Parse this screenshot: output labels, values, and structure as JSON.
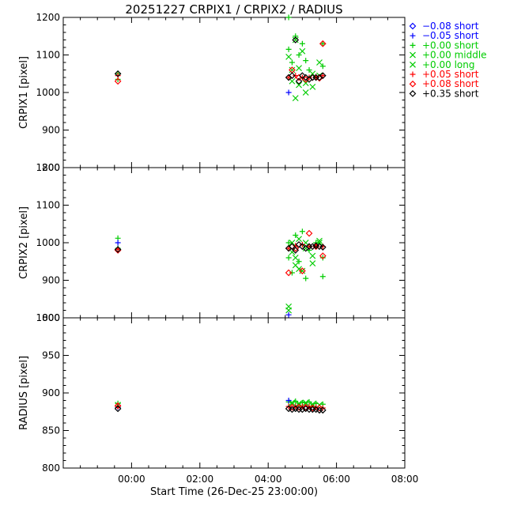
{
  "title": "20251227 CRPIX1 / CRPIX2 / RADIUS",
  "xlabel": "Start Time (26-Dec-25 23:00:00)",
  "x_ticks": [
    "00:00",
    "02:00",
    "04:00",
    "06:00",
    "08:00"
  ],
  "legend": [
    {
      "label": "−0.08 short",
      "symbol": "diamond",
      "color": "#0000ff"
    },
    {
      "label": "−0.05 short",
      "symbol": "plus",
      "color": "#0000ff"
    },
    {
      "label": "+0.00 short",
      "symbol": "plus",
      "color": "#00cc00"
    },
    {
      "label": "+0.00 middle",
      "symbol": "x",
      "color": "#00cc00"
    },
    {
      "label": "+0.00 long",
      "symbol": "x",
      "color": "#00cc00"
    },
    {
      "label": "+0.05 short",
      "symbol": "plus",
      "color": "#ff0000"
    },
    {
      "label": "+0.08 short",
      "symbol": "diamond",
      "color": "#ff0000"
    },
    {
      "label": "+0.35 short",
      "symbol": "diamond",
      "color": "#000000"
    }
  ],
  "chart_data": [
    {
      "type": "scatter",
      "ylabel": "CRPIX1 [pixel]",
      "xlim": [
        "-1.0",
        "9.0"
      ],
      "ylim": [
        800,
        1200
      ],
      "y_ticks": [
        "800",
        "900",
        "1000",
        "1100",
        "1200"
      ],
      "series": [
        {
          "name": "+0.00 short",
          "symbol": "plus",
          "color": "#00cc00",
          "points": [
            [
              0.6,
              1050
            ],
            [
              0.6,
              1035
            ],
            [
              5.6,
              1200
            ],
            [
              5.6,
              1115
            ],
            [
              5.7,
              1080
            ],
            [
              5.8,
              1150
            ],
            [
              5.9,
              1100
            ],
            [
              6.0,
              1130
            ],
            [
              6.1,
              1085
            ],
            [
              6.2,
              1060
            ],
            [
              6.4,
              1040
            ],
            [
              6.6,
              1130
            ],
            [
              6.6,
              1070
            ]
          ]
        },
        {
          "name": "+0.00 middle",
          "symbol": "x",
          "color": "#00cc00",
          "points": [
            [
              5.6,
              1095
            ],
            [
              5.7,
              1060
            ],
            [
              5.8,
              1140
            ],
            [
              5.9,
              1020
            ],
            [
              6.0,
              1110
            ],
            [
              6.1,
              1000
            ],
            [
              6.3,
              1050
            ],
            [
              6.5,
              1080
            ]
          ]
        },
        {
          "name": "+0.00 long",
          "symbol": "x",
          "color": "#00cc00",
          "points": [
            [
              5.7,
              1030
            ],
            [
              5.8,
              985
            ],
            [
              5.9,
              1065
            ],
            [
              6.1,
              1025
            ],
            [
              6.3,
              1015
            ],
            [
              6.5,
              1045
            ]
          ]
        },
        {
          "name": "−0.05 short",
          "symbol": "plus",
          "color": "#0000ff",
          "points": [
            [
              5.6,
              1000
            ]
          ]
        },
        {
          "name": "+0.05 short",
          "symbol": "plus",
          "color": "#ff0000",
          "points": [
            [
              0.6,
              1045
            ],
            [
              5.6,
              1040
            ],
            [
              5.8,
              1045
            ],
            [
              6.0,
              1040
            ],
            [
              6.2,
              1040
            ],
            [
              6.4,
              1042
            ],
            [
              6.6,
              1045
            ]
          ]
        },
        {
          "name": "+0.08 short",
          "symbol": "diamond",
          "color": "#ff0000",
          "points": [
            [
              0.6,
              1030
            ],
            [
              5.7,
              1060
            ],
            [
              5.9,
              1040
            ],
            [
              6.1,
              1035
            ],
            [
              6.3,
              1040
            ],
            [
              6.5,
              1038
            ],
            [
              6.6,
              1130
            ]
          ]
        },
        {
          "name": "+0.35 short",
          "symbol": "diamond",
          "color": "#000000",
          "points": [
            [
              0.6,
              1050
            ],
            [
              5.6,
              1040
            ],
            [
              5.7,
              1045
            ],
            [
              5.8,
              1140
            ],
            [
              5.9,
              1030
            ],
            [
              6.0,
              1045
            ],
            [
              6.1,
              1040
            ],
            [
              6.2,
              1035
            ],
            [
              6.3,
              1040
            ],
            [
              6.4,
              1040
            ],
            [
              6.5,
              1040
            ],
            [
              6.6,
              1045
            ]
          ]
        }
      ]
    },
    {
      "type": "scatter",
      "ylabel": "CRPIX2 [pixel]",
      "xlim": [
        "-1.0",
        "9.0"
      ],
      "ylim": [
        800,
        1200
      ],
      "y_ticks": [
        "800",
        "900",
        "1000",
        "1100",
        "1200"
      ],
      "series": [
        {
          "name": "+0.00 short",
          "symbol": "plus",
          "color": "#00cc00",
          "points": [
            [
              0.6,
              1012
            ],
            [
              0.6,
              985
            ],
            [
              5.6,
              1000
            ],
            [
              5.6,
              960
            ],
            [
              5.7,
              920
            ],
            [
              5.8,
              1020
            ],
            [
              5.9,
              950
            ],
            [
              6.0,
              1030
            ],
            [
              6.1,
              905
            ],
            [
              6.2,
              980
            ],
            [
              6.4,
              1000
            ],
            [
              6.6,
              960
            ],
            [
              6.6,
              910
            ]
          ]
        },
        {
          "name": "+0.00 middle",
          "symbol": "x",
          "color": "#00cc00",
          "points": [
            [
              5.6,
              830
            ],
            [
              5.6,
              820
            ],
            [
              5.7,
              975
            ],
            [
              5.8,
              940
            ],
            [
              5.9,
              1010
            ],
            [
              6.0,
              925
            ],
            [
              6.1,
              1000
            ],
            [
              6.3,
              965
            ],
            [
              6.5,
              1005
            ]
          ]
        },
        {
          "name": "+0.00 long",
          "symbol": "x",
          "color": "#00cc00",
          "points": [
            [
              5.7,
              1000
            ],
            [
              5.8,
              960
            ],
            [
              5.9,
              930
            ],
            [
              6.1,
              985
            ],
            [
              6.3,
              945
            ],
            [
              6.5,
              1000
            ]
          ]
        },
        {
          "name": "−0.05 short",
          "symbol": "plus",
          "color": "#0000ff",
          "points": [
            [
              0.6,
              1000
            ],
            [
              5.6,
              808
            ]
          ]
        },
        {
          "name": "+0.05 short",
          "symbol": "plus",
          "color": "#ff0000",
          "points": [
            [
              0.6,
              982
            ],
            [
              5.6,
              985
            ],
            [
              5.8,
              992
            ],
            [
              6.0,
              995
            ],
            [
              6.2,
              990
            ],
            [
              6.4,
              993
            ],
            [
              6.6,
              990
            ]
          ]
        },
        {
          "name": "+0.08 short",
          "symbol": "diamond",
          "color": "#ff0000",
          "points": [
            [
              0.6,
              980
            ],
            [
              5.6,
              920
            ],
            [
              5.8,
              985
            ],
            [
              6.0,
              925
            ],
            [
              6.2,
              1025
            ],
            [
              6.4,
              990
            ],
            [
              6.6,
              965
            ]
          ]
        },
        {
          "name": "+0.35 short",
          "symbol": "diamond",
          "color": "#000000",
          "points": [
            [
              0.6,
              982
            ],
            [
              5.6,
              985
            ],
            [
              5.7,
              990
            ],
            [
              5.8,
              980
            ],
            [
              5.9,
              995
            ],
            [
              6.0,
              990
            ],
            [
              6.1,
              985
            ],
            [
              6.2,
              990
            ],
            [
              6.3,
              990
            ],
            [
              6.4,
              992
            ],
            [
              6.5,
              990
            ],
            [
              6.6,
              988
            ]
          ]
        }
      ]
    },
    {
      "type": "scatter",
      "ylabel": "RADIUS [pixel]",
      "xlim": [
        "-1.0",
        "9.0"
      ],
      "ylim": [
        800,
        1000
      ],
      "y_ticks": [
        "800",
        "850",
        "900",
        "950",
        "1000"
      ],
      "series": [
        {
          "name": "+0.00 short",
          "symbol": "plus",
          "color": "#00cc00",
          "points": [
            [
              0.6,
              886
            ],
            [
              5.6,
              888
            ],
            [
              5.8,
              889
            ],
            [
              6.0,
              887
            ],
            [
              6.2,
              888
            ],
            [
              6.4,
              886
            ],
            [
              6.6,
              885
            ]
          ]
        },
        {
          "name": "+0.00 middle",
          "symbol": "x",
          "color": "#00cc00",
          "points": [
            [
              0.6,
              884
            ],
            [
              5.7,
              887
            ],
            [
              5.9,
              886
            ],
            [
              6.1,
              887
            ],
            [
              6.3,
              885
            ],
            [
              6.5,
              884
            ]
          ]
        },
        {
          "name": "+0.00 long",
          "symbol": "x",
          "color": "#00cc00",
          "points": [
            [
              5.7,
              885
            ],
            [
              5.9,
              884
            ],
            [
              6.1,
              885
            ],
            [
              6.3,
              883
            ]
          ]
        },
        {
          "name": "−0.05 short",
          "symbol": "plus",
          "color": "#0000ff",
          "points": [
            [
              5.6,
              890
            ],
            [
              0.6,
              881
            ]
          ]
        },
        {
          "name": "+0.05 short",
          "symbol": "plus",
          "color": "#ff0000",
          "points": [
            [
              0.6,
              882
            ],
            [
              5.6,
              882
            ],
            [
              5.8,
              882
            ],
            [
              6.0,
              882
            ],
            [
              6.2,
              882
            ],
            [
              6.4,
              881
            ],
            [
              6.6,
              880
            ]
          ]
        },
        {
          "name": "+0.08 short",
          "symbol": "diamond",
          "color": "#ff0000",
          "points": [
            [
              0.6,
              883
            ],
            [
              5.7,
              881
            ],
            [
              5.9,
              881
            ],
            [
              6.1,
              881
            ],
            [
              6.3,
              880
            ],
            [
              6.5,
              880
            ]
          ]
        },
        {
          "name": "+0.35 short",
          "symbol": "diamond",
          "color": "#000000",
          "points": [
            [
              0.6,
              879
            ],
            [
              5.6,
              879
            ],
            [
              5.7,
              878
            ],
            [
              5.8,
              879
            ],
            [
              5.9,
              878
            ],
            [
              6.0,
              878
            ],
            [
              6.1,
              879
            ],
            [
              6.2,
              878
            ],
            [
              6.3,
              878
            ],
            [
              6.4,
              878
            ],
            [
              6.5,
              877
            ],
            [
              6.6,
              877
            ]
          ]
        }
      ]
    }
  ]
}
